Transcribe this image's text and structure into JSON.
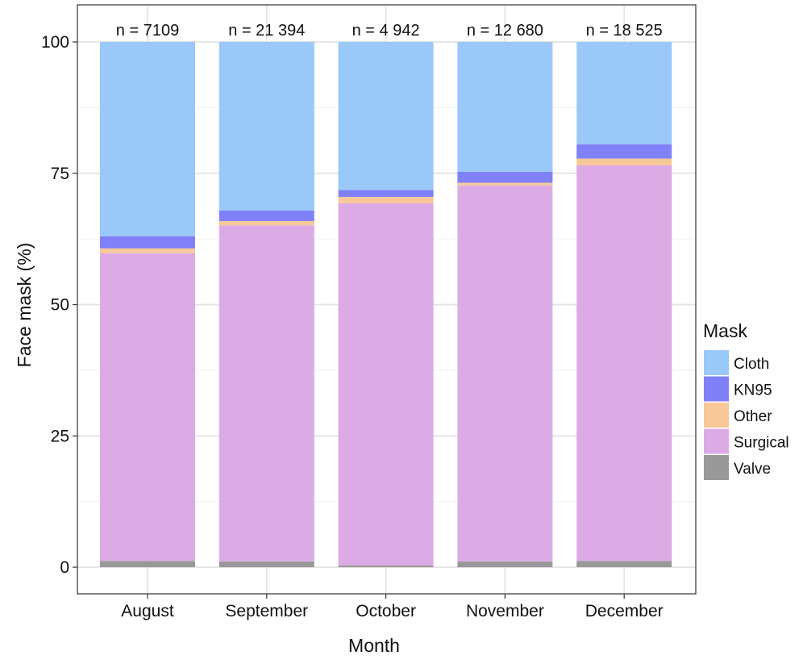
{
  "chart_data": {
    "type": "bar",
    "stacked": true,
    "xlabel": "Month",
    "ylabel": "Face mask (%)",
    "ylim": [
      0,
      100
    ],
    "yticks": [
      0,
      25,
      50,
      75,
      100
    ],
    "grid": true,
    "categories": [
      "August",
      "September",
      "October",
      "November",
      "December"
    ],
    "bar_labels": [
      "n = 7109",
      "n = 21 394",
      "n = 4 942",
      "n = 12 680",
      "n = 18 525"
    ],
    "legend": {
      "title": "Mask",
      "position": "right"
    },
    "series": [
      {
        "name": "Valve",
        "color": "#999999",
        "values": [
          1.2,
          1.1,
          0.3,
          1.1,
          1.2
        ]
      },
      {
        "name": "Surgical",
        "color": "#dcabe6",
        "values": [
          58.6,
          64.0,
          69.0,
          71.6,
          75.3
        ]
      },
      {
        "name": "Other",
        "color": "#f8c898",
        "values": [
          0.9,
          0.8,
          1.2,
          0.5,
          1.3
        ]
      },
      {
        "name": "KN95",
        "color": "#8080f8",
        "values": [
          2.3,
          2.0,
          1.3,
          2.1,
          2.7
        ]
      },
      {
        "name": "Cloth",
        "color": "#9ac8f8",
        "values": [
          37.0,
          32.1,
          28.2,
          24.7,
          19.5
        ]
      }
    ],
    "legend_order": [
      "Cloth",
      "KN95",
      "Other",
      "Surgical",
      "Valve"
    ]
  }
}
